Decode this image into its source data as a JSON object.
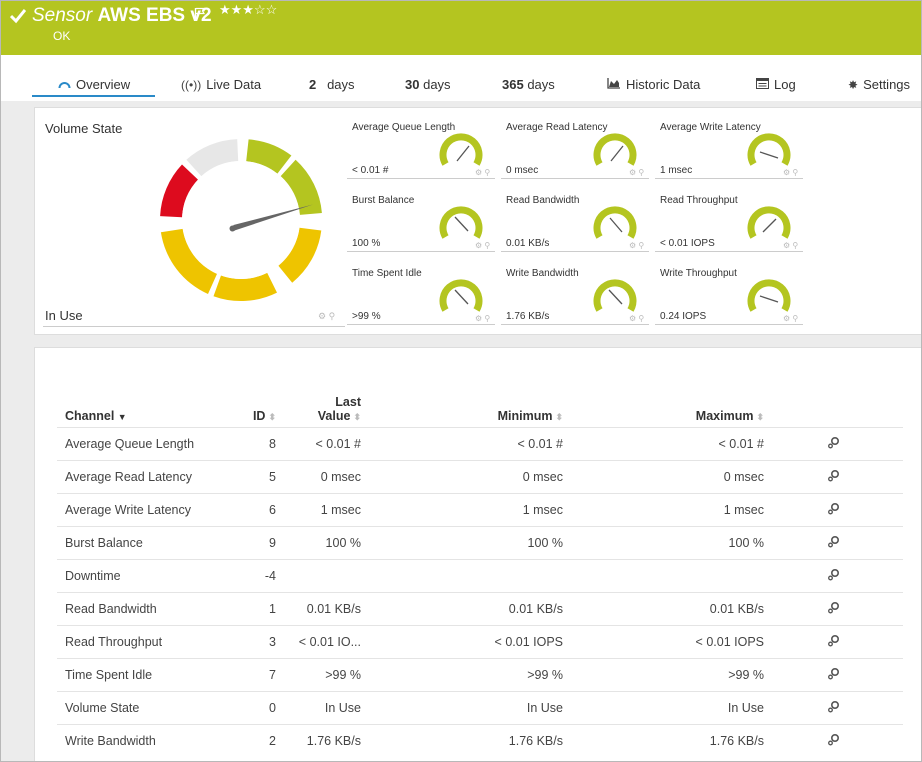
{
  "header": {
    "title_prefix": "Sensor",
    "title_name": "AWS EBS v2",
    "stars": "★★★☆☆",
    "status": "OK",
    "colors": {
      "bar": "#b4c520"
    }
  },
  "tabs": [
    {
      "icon": "overview-icon",
      "label": "Overview"
    },
    {
      "icon": "live-data-icon",
      "label": "Live Data"
    },
    {
      "num": "2",
      "label": "days"
    },
    {
      "num": "30",
      "label": "days"
    },
    {
      "num": "365",
      "label": "days"
    },
    {
      "icon": "chart-icon",
      "label": "Historic Data"
    },
    {
      "icon": "log-icon",
      "label": "Log"
    },
    {
      "icon": "gear-icon",
      "label": "Settings"
    }
  ],
  "volume_state": {
    "title": "Volume State",
    "value": "In Use"
  },
  "gauges": [
    {
      "label": "Average Queue Length",
      "value": "< 0.01 #"
    },
    {
      "label": "Average Read Latency",
      "value": "0 msec"
    },
    {
      "label": "Average Write Latency",
      "value": "1 msec"
    },
    {
      "label": "Burst Balance",
      "value": "100 %"
    },
    {
      "label": "Read Bandwidth",
      "value": "0.01 KB/s"
    },
    {
      "label": "Read Throughput",
      "value": "< 0.01 IOPS"
    },
    {
      "label": "Time Spent Idle",
      "value": ">99 %"
    },
    {
      "label": "Write Bandwidth",
      "value": "1.76 KB/s"
    },
    {
      "label": "Write Throughput",
      "value": "0.24 IOPS"
    }
  ],
  "table": {
    "headers": {
      "channel": "Channel",
      "id": "ID",
      "last_1": "Last",
      "last_2": "Value",
      "minimum": "Minimum",
      "maximum": "Maximum"
    },
    "rows": [
      {
        "name": "Average Queue Length",
        "id": "8",
        "last": "< 0.01 #",
        "min": "< 0.01 #",
        "max": "< 0.01 #"
      },
      {
        "name": "Average Read Latency",
        "id": "5",
        "last": "0 msec",
        "min": "0 msec",
        "max": "0 msec"
      },
      {
        "name": "Average Write Latency",
        "id": "6",
        "last": "1 msec",
        "min": "1 msec",
        "max": "1 msec"
      },
      {
        "name": "Burst Balance",
        "id": "9",
        "last": "100 %",
        "min": "100 %",
        "max": "100 %"
      },
      {
        "name": "Downtime",
        "id": "-4",
        "last": "",
        "min": "",
        "max": ""
      },
      {
        "name": "Read Bandwidth",
        "id": "1",
        "last": "0.01 KB/s",
        "min": "0.01 KB/s",
        "max": "0.01 KB/s"
      },
      {
        "name": "Read Throughput",
        "id": "3",
        "last": "< 0.01 IO...",
        "min": "< 0.01 IOPS",
        "max": "< 0.01 IOPS"
      },
      {
        "name": "Time Spent Idle",
        "id": "7",
        "last": ">99 %",
        "min": ">99 %",
        "max": ">99 %"
      },
      {
        "name": "Volume State",
        "id": "0",
        "last": "In Use",
        "min": "In Use",
        "max": "In Use"
      },
      {
        "name": "Write Bandwidth",
        "id": "2",
        "last": "1.76 KB/s",
        "min": "1.76 KB/s",
        "max": "1.76 KB/s"
      }
    ]
  }
}
